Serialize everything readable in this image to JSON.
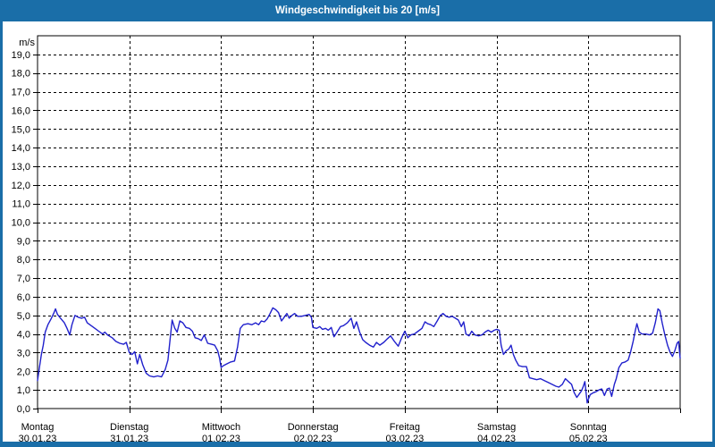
{
  "window": {
    "title": "Windgeschwindigkeit bis 20 [m/s]",
    "frame_color": "#1a6ea8",
    "title_text_color": "#ffffff",
    "content_background": "#ffffff"
  },
  "chart_data": {
    "type": "line",
    "title": "Windgeschwindigkeit bis 20 [m/s]",
    "unit_label": "m/s",
    "series_color": "#2020cc",
    "grid_color": "#000000",
    "plot_background": "#ffffff",
    "grid_style": "dashed",
    "legend": "none",
    "ylim": [
      0,
      20
    ],
    "xlim_hours": [
      0,
      168
    ],
    "y_tick_labels": [
      "0,0",
      "1,0",
      "2,0",
      "3,0",
      "4,0",
      "5,0",
      "6,0",
      "7,0",
      "8,0",
      "9,0",
      "10,0",
      "11,0",
      "12,0",
      "13,0",
      "14,0",
      "15,0",
      "16,0",
      "17,0",
      "18,0",
      "19,0"
    ],
    "x_days": [
      {
        "name": "Montag",
        "date": "30.01.23"
      },
      {
        "name": "Dienstag",
        "date": "31.01.23"
      },
      {
        "name": "Mittwoch",
        "date": "01.02.23"
      },
      {
        "name": "Donnerstag",
        "date": "02.02.23"
      },
      {
        "name": "Freitag",
        "date": "03.02.23"
      },
      {
        "name": "Samstag",
        "date": "04.02.23"
      },
      {
        "name": "Sonntag",
        "date": "05.02.23"
      }
    ],
    "series": [
      {
        "name": "Windgeschwindigkeit",
        "points": [
          [
            0,
            1.5
          ],
          [
            0.5,
            2.2
          ],
          [
            1,
            2.9
          ],
          [
            1.5,
            3.4
          ],
          [
            2,
            4.1
          ],
          [
            2.7,
            4.5
          ],
          [
            3.5,
            4.8
          ],
          [
            4.2,
            5.1
          ],
          [
            4.7,
            5.35
          ],
          [
            5.2,
            5.05
          ],
          [
            6,
            4.85
          ],
          [
            7,
            4.6
          ],
          [
            7.7,
            4.3
          ],
          [
            8.4,
            3.95
          ],
          [
            9,
            4.5
          ],
          [
            9.8,
            5.0
          ],
          [
            10.6,
            4.9
          ],
          [
            11.5,
            4.85
          ],
          [
            12.3,
            4.9
          ],
          [
            13,
            4.6
          ],
          [
            14,
            4.45
          ],
          [
            15,
            4.3
          ],
          [
            16,
            4.15
          ],
          [
            17,
            4.0
          ],
          [
            17.6,
            4.1
          ],
          [
            18.3,
            3.95
          ],
          [
            19.5,
            3.8
          ],
          [
            20.5,
            3.6
          ],
          [
            21.5,
            3.5
          ],
          [
            22.5,
            3.45
          ],
          [
            23.2,
            3.55
          ],
          [
            24,
            3.0
          ],
          [
            24.7,
            2.9
          ],
          [
            25.4,
            3.05
          ],
          [
            26.1,
            2.4
          ],
          [
            26.7,
            2.9
          ],
          [
            27.5,
            2.35
          ],
          [
            28.4,
            1.9
          ],
          [
            29.3,
            1.75
          ],
          [
            30.4,
            1.7
          ],
          [
            31.4,
            1.75
          ],
          [
            32.4,
            1.7
          ],
          [
            33.4,
            2.1
          ],
          [
            34.1,
            2.6
          ],
          [
            34.7,
            3.8
          ],
          [
            35.2,
            4.75
          ],
          [
            35.9,
            4.3
          ],
          [
            36.5,
            4.1
          ],
          [
            37.2,
            4.7
          ],
          [
            38,
            4.6
          ],
          [
            38.8,
            4.35
          ],
          [
            39.7,
            4.3
          ],
          [
            40.5,
            4.15
          ],
          [
            41.2,
            3.8
          ],
          [
            42,
            3.75
          ],
          [
            42.8,
            3.65
          ],
          [
            43.6,
            3.95
          ],
          [
            44.5,
            3.5
          ],
          [
            45.5,
            3.45
          ],
          [
            46.3,
            3.4
          ],
          [
            47.1,
            3.1
          ],
          [
            47.6,
            2.7
          ],
          [
            48,
            2.2
          ],
          [
            48.6,
            2.3
          ],
          [
            49.5,
            2.4
          ],
          [
            50.5,
            2.5
          ],
          [
            51.5,
            2.55
          ],
          [
            52.3,
            3.3
          ],
          [
            53,
            4.3
          ],
          [
            53.8,
            4.5
          ],
          [
            55,
            4.55
          ],
          [
            56,
            4.5
          ],
          [
            57,
            4.6
          ],
          [
            57.8,
            4.5
          ],
          [
            58.5,
            4.7
          ],
          [
            59.3,
            4.65
          ],
          [
            60,
            4.8
          ],
          [
            60.8,
            5.1
          ],
          [
            61.5,
            5.4
          ],
          [
            62.3,
            5.3
          ],
          [
            63,
            5.15
          ],
          [
            63.8,
            4.7
          ],
          [
            64.5,
            4.9
          ],
          [
            65.2,
            5.1
          ],
          [
            65.8,
            4.85
          ],
          [
            66.5,
            5.0
          ],
          [
            67.2,
            5.1
          ],
          [
            68,
            4.95
          ],
          [
            69,
            4.95
          ],
          [
            70,
            5.0
          ],
          [
            71,
            5.05
          ],
          [
            71.6,
            4.9
          ],
          [
            72,
            4.35
          ],
          [
            73,
            4.3
          ],
          [
            73.8,
            4.4
          ],
          [
            74.5,
            4.25
          ],
          [
            75.3,
            4.3
          ],
          [
            76,
            4.2
          ],
          [
            76.8,
            4.35
          ],
          [
            77.5,
            3.85
          ],
          [
            78.3,
            4.1
          ],
          [
            79.2,
            4.4
          ],
          [
            80,
            4.45
          ],
          [
            81,
            4.6
          ],
          [
            82,
            4.85
          ],
          [
            82.7,
            4.3
          ],
          [
            83.4,
            4.65
          ],
          [
            84.2,
            4.1
          ],
          [
            85,
            3.7
          ],
          [
            85.8,
            3.55
          ],
          [
            86.8,
            3.4
          ],
          [
            87.8,
            3.3
          ],
          [
            88.6,
            3.55
          ],
          [
            89.5,
            3.4
          ],
          [
            90.5,
            3.55
          ],
          [
            91.5,
            3.75
          ],
          [
            92.3,
            3.9
          ],
          [
            93.3,
            3.6
          ],
          [
            94.3,
            3.35
          ],
          [
            95.2,
            3.8
          ],
          [
            96,
            4.15
          ],
          [
            96.8,
            3.8
          ],
          [
            97.6,
            3.95
          ],
          [
            98.5,
            4.0
          ],
          [
            99.5,
            4.15
          ],
          [
            100.5,
            4.3
          ],
          [
            101.3,
            4.65
          ],
          [
            102,
            4.55
          ],
          [
            102.8,
            4.5
          ],
          [
            103.6,
            4.4
          ],
          [
            104.5,
            4.7
          ],
          [
            105.3,
            5.0
          ],
          [
            106,
            5.1
          ],
          [
            106.8,
            4.95
          ],
          [
            107.6,
            4.9
          ],
          [
            108.4,
            4.95
          ],
          [
            109.2,
            4.85
          ],
          [
            110,
            4.75
          ],
          [
            110.8,
            4.4
          ],
          [
            111.4,
            4.65
          ],
          [
            112,
            4.0
          ],
          [
            112.8,
            3.9
          ],
          [
            113.5,
            4.15
          ],
          [
            114.3,
            3.95
          ],
          [
            115.3,
            3.9
          ],
          [
            116.2,
            3.95
          ],
          [
            117,
            4.1
          ],
          [
            117.8,
            4.2
          ],
          [
            118.6,
            4.1
          ],
          [
            119.4,
            4.2
          ],
          [
            120,
            4.25
          ],
          [
            120.7,
            4.2
          ],
          [
            121.2,
            3.4
          ],
          [
            121.8,
            2.9
          ],
          [
            122.5,
            3.1
          ],
          [
            123.2,
            3.2
          ],
          [
            123.8,
            3.4
          ],
          [
            124.4,
            2.9
          ],
          [
            125,
            2.6
          ],
          [
            125.8,
            2.3
          ],
          [
            126.8,
            2.25
          ],
          [
            127.8,
            2.25
          ],
          [
            128.6,
            1.65
          ],
          [
            129.5,
            1.6
          ],
          [
            130.5,
            1.55
          ],
          [
            131.5,
            1.6
          ],
          [
            132.5,
            1.5
          ],
          [
            133.5,
            1.4
          ],
          [
            134.5,
            1.3
          ],
          [
            135.5,
            1.2
          ],
          [
            136.3,
            1.15
          ],
          [
            137.2,
            1.3
          ],
          [
            138,
            1.6
          ],
          [
            138.8,
            1.45
          ],
          [
            139.6,
            1.3
          ],
          [
            140.3,
            0.85
          ],
          [
            141,
            0.6
          ],
          [
            141.7,
            0.8
          ],
          [
            142.2,
            0.95
          ],
          [
            142.7,
            1.2
          ],
          [
            143.1,
            1.45
          ],
          [
            143.7,
            0.3
          ],
          [
            144,
            0.5
          ],
          [
            144.5,
            0.75
          ],
          [
            145.3,
            0.85
          ],
          [
            146,
            0.9
          ],
          [
            146.8,
            1.0
          ],
          [
            147.5,
            1.05
          ],
          [
            148.2,
            0.7
          ],
          [
            148.9,
            1.05
          ],
          [
            149.5,
            1.1
          ],
          [
            150.1,
            0.65
          ],
          [
            150.8,
            1.3
          ],
          [
            151.3,
            1.6
          ],
          [
            152,
            2.2
          ],
          [
            152.8,
            2.45
          ],
          [
            153.6,
            2.5
          ],
          [
            154.4,
            2.6
          ],
          [
            155,
            3.0
          ],
          [
            155.7,
            3.6
          ],
          [
            156.3,
            4.2
          ],
          [
            156.7,
            4.55
          ],
          [
            157.3,
            4.1
          ],
          [
            158,
            4.0
          ],
          [
            159,
            4.0
          ],
          [
            160,
            3.95
          ],
          [
            160.8,
            4.05
          ],
          [
            161.5,
            4.6
          ],
          [
            162.2,
            5.35
          ],
          [
            162.7,
            5.25
          ],
          [
            163.3,
            4.6
          ],
          [
            164,
            3.95
          ],
          [
            164.7,
            3.4
          ],
          [
            165.4,
            3.0
          ],
          [
            166,
            2.8
          ],
          [
            166.6,
            3.1
          ],
          [
            167.2,
            3.5
          ],
          [
            167.6,
            3.6
          ],
          [
            168,
            2.7
          ]
        ]
      }
    ]
  }
}
